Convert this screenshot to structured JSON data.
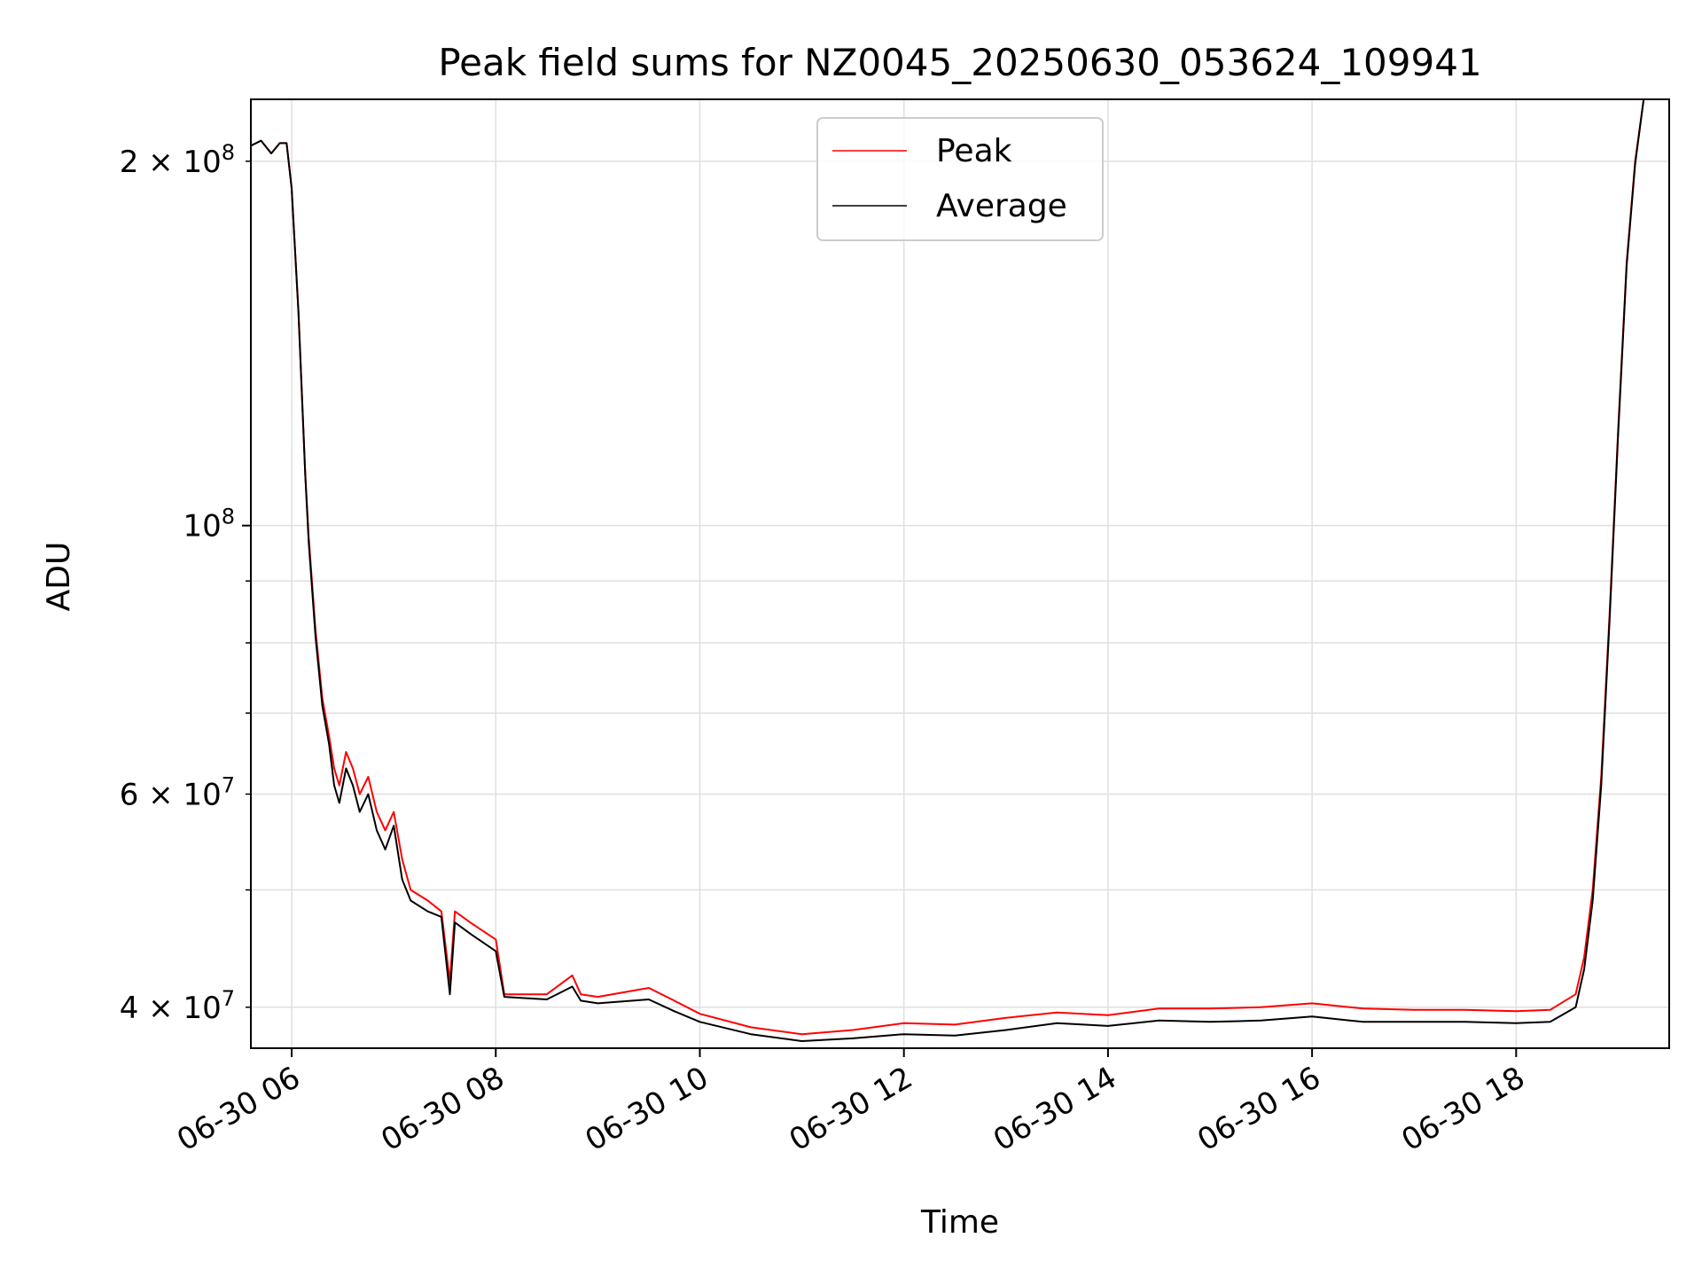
{
  "chart_data": {
    "type": "line",
    "title": "Peak field sums for NZ0045_20250630_053624_109941",
    "xlabel": "Time",
    "ylabel": "ADU",
    "yscale": "log",
    "grid": true,
    "legend_position": "upper center",
    "x_range": [
      "2025-06-30 05:36",
      "2025-06-30 19:30"
    ],
    "y_range": [
      37000000,
      225000000
    ],
    "x_ticks": [
      {
        "label": "06-30 06",
        "value": "2025-06-30 06:00"
      },
      {
        "label": "06-30 08",
        "value": "2025-06-30 08:00"
      },
      {
        "label": "06-30 10",
        "value": "2025-06-30 10:00"
      },
      {
        "label": "06-30 12",
        "value": "2025-06-30 12:00"
      },
      {
        "label": "06-30 14",
        "value": "2025-06-30 14:00"
      },
      {
        "label": "06-30 16",
        "value": "2025-06-30 16:00"
      },
      {
        "label": "06-30 18",
        "value": "2025-06-30 18:00"
      }
    ],
    "y_major_ticks": [
      {
        "base": "10",
        "exp": "8",
        "value": 100000000
      }
    ],
    "y_minor_labeled_ticks": [
      {
        "mantissa": "2",
        "exp": "8",
        "value": 200000000
      },
      {
        "mantissa": "6",
        "exp": "7",
        "value": 60000000
      },
      {
        "mantissa": "4",
        "exp": "7",
        "value": 40000000
      }
    ],
    "y_minor_ticks": [
      40000000,
      50000000,
      60000000,
      70000000,
      80000000,
      90000000,
      200000000
    ],
    "series": [
      {
        "name": "Peak",
        "color": "#ff0000",
        "points": [
          [
            "2025-06-30 05:36",
            206000000
          ],
          [
            "2025-06-30 05:42",
            208000000
          ],
          [
            "2025-06-30 05:48",
            203000000
          ],
          [
            "2025-06-30 05:53",
            207000000
          ],
          [
            "2025-06-30 05:57",
            207000000
          ],
          [
            "2025-06-30 06:00",
            190000000
          ],
          [
            "2025-06-30 06:04",
            150000000
          ],
          [
            "2025-06-30 06:08",
            110000000
          ],
          [
            "2025-06-30 06:10",
            98000000
          ],
          [
            "2025-06-30 06:14",
            82000000
          ],
          [
            "2025-06-30 06:18",
            72000000
          ],
          [
            "2025-06-30 06:22",
            67000000
          ],
          [
            "2025-06-30 06:25",
            63000000
          ],
          [
            "2025-06-30 06:28",
            61000000
          ],
          [
            "2025-06-30 06:32",
            65000000
          ],
          [
            "2025-06-30 06:36",
            63000000
          ],
          [
            "2025-06-30 06:40",
            60000000
          ],
          [
            "2025-06-30 06:45",
            62000000
          ],
          [
            "2025-06-30 06:50",
            58000000
          ],
          [
            "2025-06-30 06:55",
            56000000
          ],
          [
            "2025-06-30 07:00",
            58000000
          ],
          [
            "2025-06-30 07:05",
            53000000
          ],
          [
            "2025-06-30 07:10",
            50000000
          ],
          [
            "2025-06-30 07:20",
            49000000
          ],
          [
            "2025-06-30 07:28",
            48000000
          ],
          [
            "2025-06-30 07:33",
            42000000
          ],
          [
            "2025-06-30 07:36",
            48000000
          ],
          [
            "2025-06-30 07:45",
            47000000
          ],
          [
            "2025-06-30 08:00",
            45500000
          ],
          [
            "2025-06-30 08:05",
            41000000
          ],
          [
            "2025-06-30 08:30",
            41000000
          ],
          [
            "2025-06-30 08:45",
            42500000
          ],
          [
            "2025-06-30 08:50",
            41000000
          ],
          [
            "2025-06-30 09:00",
            40800000
          ],
          [
            "2025-06-30 09:30",
            41500000
          ],
          [
            "2025-06-30 09:45",
            40500000
          ],
          [
            "2025-06-30 10:00",
            39500000
          ],
          [
            "2025-06-30 10:30",
            38500000
          ],
          [
            "2025-06-30 11:00",
            38000000
          ],
          [
            "2025-06-30 11:30",
            38300000
          ],
          [
            "2025-06-30 12:00",
            38800000
          ],
          [
            "2025-06-30 12:30",
            38700000
          ],
          [
            "2025-06-30 13:00",
            39200000
          ],
          [
            "2025-06-30 13:30",
            39600000
          ],
          [
            "2025-06-30 14:00",
            39400000
          ],
          [
            "2025-06-30 14:30",
            39900000
          ],
          [
            "2025-06-30 15:00",
            39900000
          ],
          [
            "2025-06-30 15:30",
            40000000
          ],
          [
            "2025-06-30 16:00",
            40300000
          ],
          [
            "2025-06-30 16:30",
            39900000
          ],
          [
            "2025-06-30 17:00",
            39800000
          ],
          [
            "2025-06-30 17:30",
            39800000
          ],
          [
            "2025-06-30 18:00",
            39700000
          ],
          [
            "2025-06-30 18:20",
            39800000
          ],
          [
            "2025-06-30 18:35",
            41000000
          ],
          [
            "2025-06-30 18:40",
            44000000
          ],
          [
            "2025-06-30 18:45",
            50000000
          ],
          [
            "2025-06-30 18:50",
            62000000
          ],
          [
            "2025-06-30 18:55",
            85000000
          ],
          [
            "2025-06-30 19:00",
            120000000
          ],
          [
            "2025-06-30 19:05",
            165000000
          ],
          [
            "2025-06-30 19:10",
            200000000
          ],
          [
            "2025-06-30 19:15",
            225000000
          ],
          [
            "2025-06-30 19:30",
            225000000
          ]
        ]
      },
      {
        "name": "Average",
        "color": "#000000",
        "points": [
          [
            "2025-06-30 05:36",
            206000000
          ],
          [
            "2025-06-30 05:42",
            208000000
          ],
          [
            "2025-06-30 05:48",
            203000000
          ],
          [
            "2025-06-30 05:53",
            207000000
          ],
          [
            "2025-06-30 05:57",
            207000000
          ],
          [
            "2025-06-30 06:00",
            190000000
          ],
          [
            "2025-06-30 06:04",
            150000000
          ],
          [
            "2025-06-30 06:08",
            110000000
          ],
          [
            "2025-06-30 06:10",
            97000000
          ],
          [
            "2025-06-30 06:14",
            81000000
          ],
          [
            "2025-06-30 06:18",
            71000000
          ],
          [
            "2025-06-30 06:22",
            66000000
          ],
          [
            "2025-06-30 06:25",
            61000000
          ],
          [
            "2025-06-30 06:28",
            59000000
          ],
          [
            "2025-06-30 06:32",
            63000000
          ],
          [
            "2025-06-30 06:36",
            61000000
          ],
          [
            "2025-06-30 06:40",
            58000000
          ],
          [
            "2025-06-30 06:45",
            60000000
          ],
          [
            "2025-06-30 06:50",
            56000000
          ],
          [
            "2025-06-30 06:55",
            54000000
          ],
          [
            "2025-06-30 07:00",
            56500000
          ],
          [
            "2025-06-30 07:05",
            51000000
          ],
          [
            "2025-06-30 07:10",
            49000000
          ],
          [
            "2025-06-30 07:20",
            48000000
          ],
          [
            "2025-06-30 07:28",
            47500000
          ],
          [
            "2025-06-30 07:33",
            41000000
          ],
          [
            "2025-06-30 07:36",
            47000000
          ],
          [
            "2025-06-30 07:45",
            46000000
          ],
          [
            "2025-06-30 08:00",
            44500000
          ],
          [
            "2025-06-30 08:05",
            40800000
          ],
          [
            "2025-06-30 08:30",
            40600000
          ],
          [
            "2025-06-30 08:45",
            41600000
          ],
          [
            "2025-06-30 08:50",
            40500000
          ],
          [
            "2025-06-30 09:00",
            40300000
          ],
          [
            "2025-06-30 09:30",
            40600000
          ],
          [
            "2025-06-30 09:45",
            39700000
          ],
          [
            "2025-06-30 10:00",
            38900000
          ],
          [
            "2025-06-30 10:30",
            38000000
          ],
          [
            "2025-06-30 11:00",
            37500000
          ],
          [
            "2025-06-30 11:30",
            37700000
          ],
          [
            "2025-06-30 12:00",
            38000000
          ],
          [
            "2025-06-30 12:30",
            37900000
          ],
          [
            "2025-06-30 13:00",
            38300000
          ],
          [
            "2025-06-30 13:30",
            38800000
          ],
          [
            "2025-06-30 14:00",
            38600000
          ],
          [
            "2025-06-30 14:30",
            39000000
          ],
          [
            "2025-06-30 15:00",
            38900000
          ],
          [
            "2025-06-30 15:30",
            39000000
          ],
          [
            "2025-06-30 16:00",
            39300000
          ],
          [
            "2025-06-30 16:30",
            38900000
          ],
          [
            "2025-06-30 17:00",
            38900000
          ],
          [
            "2025-06-30 17:30",
            38900000
          ],
          [
            "2025-06-30 18:00",
            38800000
          ],
          [
            "2025-06-30 18:20",
            38900000
          ],
          [
            "2025-06-30 18:35",
            40000000
          ],
          [
            "2025-06-30 18:40",
            43000000
          ],
          [
            "2025-06-30 18:45",
            49000000
          ],
          [
            "2025-06-30 18:50",
            61000000
          ],
          [
            "2025-06-30 18:55",
            84000000
          ],
          [
            "2025-06-30 19:00",
            119000000
          ],
          [
            "2025-06-30 19:05",
            164000000
          ],
          [
            "2025-06-30 19:10",
            199000000
          ],
          [
            "2025-06-30 19:15",
            225000000
          ],
          [
            "2025-06-30 19:30",
            225000000
          ]
        ]
      }
    ]
  }
}
